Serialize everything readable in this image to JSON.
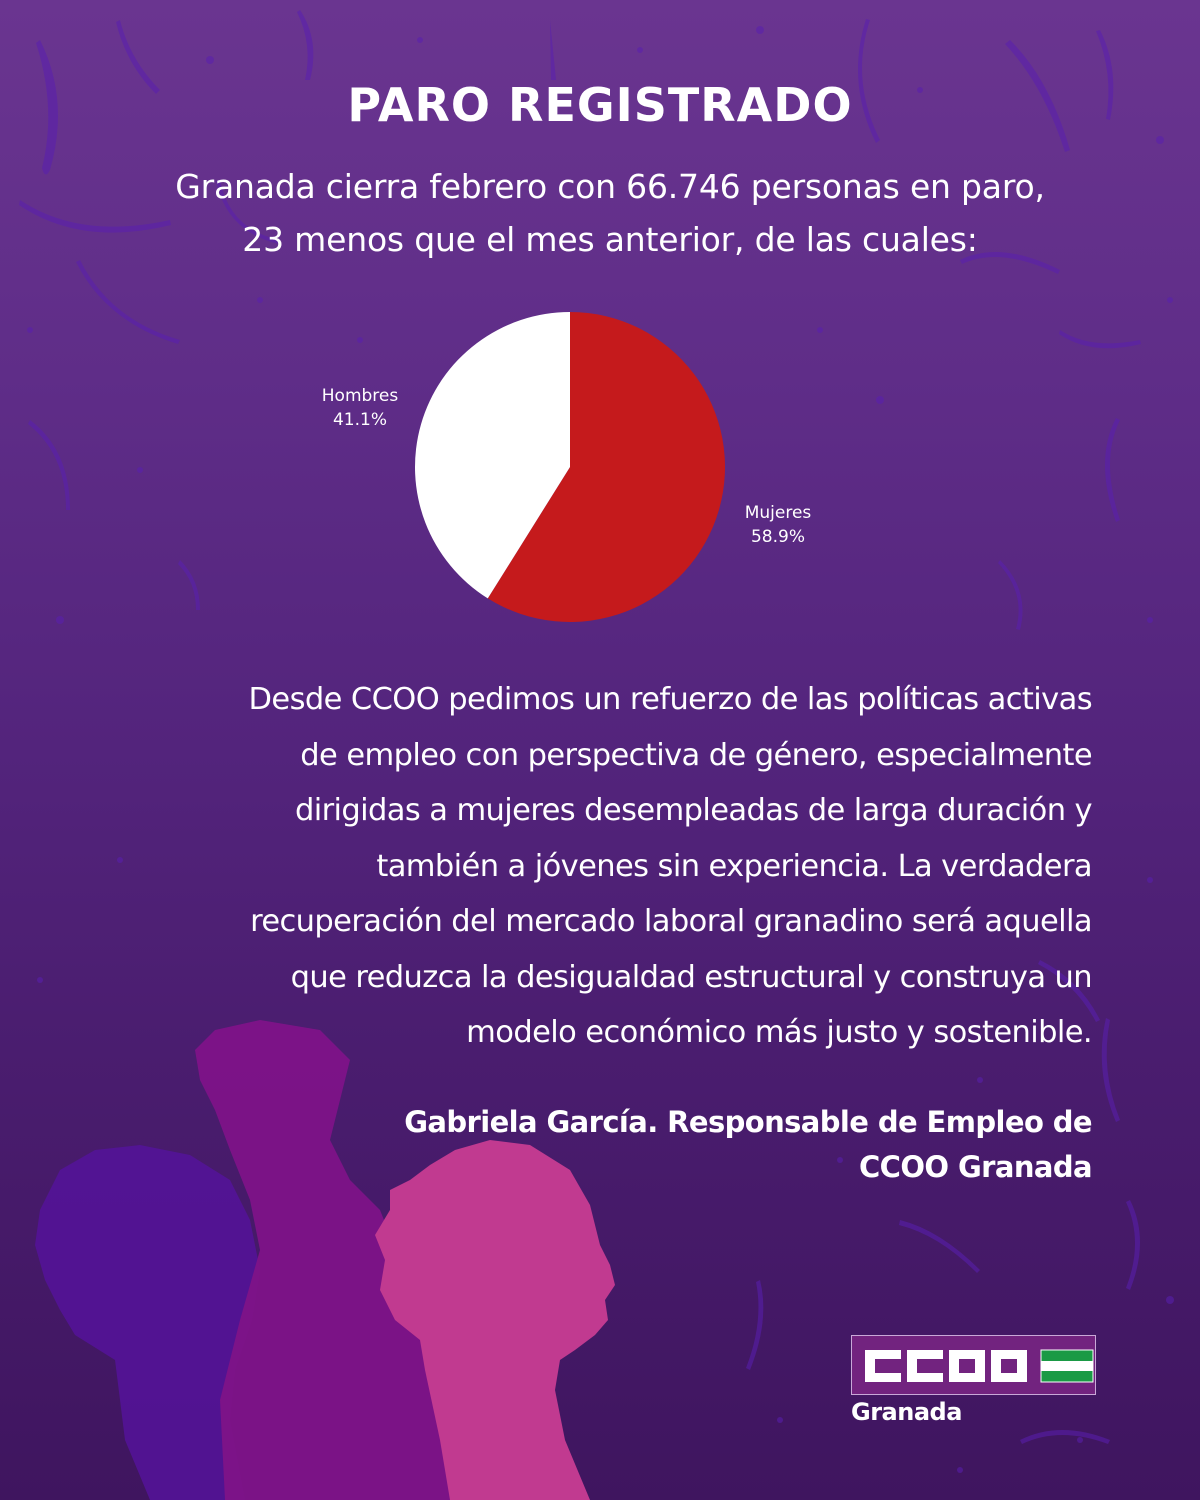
{
  "header": {
    "title": "PARO REGISTRADO",
    "subtitle_lines": [
      "Granada cierra febrero con 66.746 personas en paro,",
      "23 menos que el mes anterior, de las cuales:"
    ]
  },
  "chart_data": {
    "type": "pie",
    "title": "",
    "categories": [
      "Mujeres",
      "Hombres"
    ],
    "values": [
      58.9,
      41.1
    ],
    "unit": "%",
    "colors": [
      "#c51a1c",
      "#ffffff"
    ],
    "labels": [
      {
        "name": "Hombres",
        "value": "41.1%"
      },
      {
        "name": "Mujeres",
        "value": "58.9%"
      }
    ],
    "legend": "none (inline labels)",
    "start_angle_deg": 0,
    "direction": "clockwise from 12 o'clock, Mujeres first"
  },
  "body": {
    "paragraph_lines": [
      "Desde CCOO pedimos un refuerzo de las políticas activas",
      "de empleo con perspectiva de género, especialmente",
      "dirigidas a mujeres desempleadas de larga duración y",
      "también a jóvenes sin experiencia. La verdadera",
      "recuperación del mercado laboral granadino será aquella",
      "que reduzca la desigualdad estructural y construya un",
      "modelo económico más justo y sostenible."
    ],
    "signature_lines": [
      "Gabriela García. Responsable de Empleo de",
      "CCOO Granada"
    ]
  },
  "logo": {
    "acronym": "CCOO",
    "region": "Granada",
    "flag_colors": [
      "#1a9a45",
      "#ffffff",
      "#1a9a45"
    ],
    "box_color": "#72237f"
  },
  "colors": {
    "background_top": "#6a3590",
    "background_bottom": "#3f155f",
    "silhouette_violet": "#55139a",
    "silhouette_purple": "#7e1388",
    "silhouette_pink": "#c13a90"
  }
}
